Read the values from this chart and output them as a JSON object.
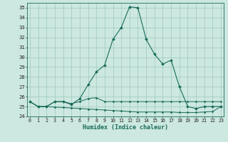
{
  "xlabel": "Humidex (Indice chaleur)",
  "bg_color": "#cce8e0",
  "grid_color": "#9ec8be",
  "line_color": "#1a6b5a",
  "x_values": [
    0,
    1,
    2,
    3,
    4,
    5,
    6,
    7,
    8,
    9,
    10,
    11,
    12,
    13,
    14,
    15,
    16,
    17,
    18,
    19,
    20,
    21,
    22,
    23
  ],
  "humidex_line": [
    25.5,
    25.0,
    25.0,
    25.5,
    25.5,
    25.2,
    25.8,
    27.2,
    28.5,
    29.2,
    31.8,
    33.0,
    35.1,
    35.0,
    31.8,
    30.3,
    29.3,
    29.7,
    27.0,
    25.0,
    24.8,
    25.0,
    25.0,
    25.0
  ],
  "flat_line1": [
    25.5,
    25.0,
    25.0,
    25.5,
    25.5,
    25.3,
    25.5,
    25.8,
    25.9,
    25.5,
    25.5,
    25.5,
    25.5,
    25.5,
    25.5,
    25.5,
    25.5,
    25.5,
    25.5,
    25.5,
    25.5,
    25.5,
    25.5,
    25.5
  ],
  "flat_line2": [
    25.5,
    25.0,
    25.0,
    24.95,
    24.9,
    24.85,
    24.8,
    24.75,
    24.7,
    24.65,
    24.6,
    24.55,
    24.5,
    24.45,
    24.45,
    24.45,
    24.45,
    24.45,
    24.4,
    24.4,
    24.4,
    24.45,
    24.5,
    25.0
  ],
  "ylim": [
    24,
    35.5
  ],
  "yticks": [
    24,
    25,
    26,
    27,
    28,
    29,
    30,
    31,
    32,
    33,
    34,
    35
  ],
  "xticks": [
    0,
    1,
    2,
    3,
    4,
    5,
    6,
    7,
    8,
    9,
    10,
    11,
    12,
    13,
    14,
    15,
    16,
    17,
    18,
    19,
    20,
    21,
    22,
    23
  ],
  "xlim": [
    -0.3,
    23.3
  ]
}
